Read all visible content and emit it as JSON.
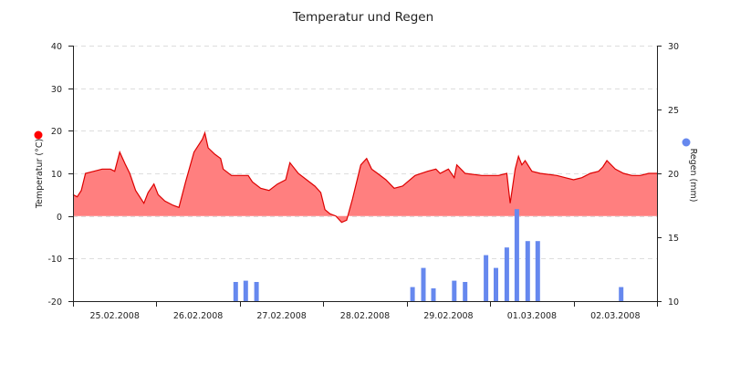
{
  "chart_data": {
    "type": "area+bar",
    "title": "Temperatur und Regen",
    "x_labels": [
      "25.02.2008",
      "26.02.2008",
      "27.02.2008",
      "28.02.2008",
      "29.02.2008",
      "01.03.2008",
      "02.03.2008"
    ],
    "x_range_days": [
      0,
      7
    ],
    "y_left": {
      "label": "Temperatur (°C)",
      "ylim": [
        -20,
        40
      ],
      "ticks": [
        -20,
        -10,
        0,
        10,
        20,
        30,
        40
      ]
    },
    "y_right": {
      "label": "Regen (mm)",
      "ylim": [
        10,
        30
      ],
      "ticks": [
        10,
        15,
        20,
        25,
        30
      ]
    },
    "grid": true,
    "series": [
      {
        "name": "Temperatur (°C)",
        "type": "area",
        "color": "#ff7f7f",
        "line_color": "#dd0000",
        "marker_color": "#ff0000",
        "axis": "left",
        "points": [
          [
            0.0,
            5.0
          ],
          [
            0.05,
            4.5
          ],
          [
            0.1,
            6.0
          ],
          [
            0.15,
            10.0
          ],
          [
            0.25,
            10.5
          ],
          [
            0.35,
            11.0
          ],
          [
            0.45,
            11.0
          ],
          [
            0.5,
            10.5
          ],
          [
            0.56,
            15.0
          ],
          [
            0.63,
            12.0
          ],
          [
            0.68,
            10.0
          ],
          [
            0.75,
            6.0
          ],
          [
            0.85,
            3.0
          ],
          [
            0.9,
            5.5
          ],
          [
            0.97,
            7.5
          ],
          [
            1.02,
            5.0
          ],
          [
            1.1,
            3.5
          ],
          [
            1.2,
            2.5
          ],
          [
            1.27,
            2.0
          ],
          [
            1.35,
            8.0
          ],
          [
            1.45,
            15.0
          ],
          [
            1.55,
            18.0
          ],
          [
            1.58,
            19.5
          ],
          [
            1.62,
            16.0
          ],
          [
            1.7,
            14.5
          ],
          [
            1.77,
            13.5
          ],
          [
            1.8,
            11.0
          ],
          [
            1.9,
            9.5
          ],
          [
            2.0,
            9.5
          ],
          [
            2.1,
            9.5
          ],
          [
            2.15,
            8.0
          ],
          [
            2.25,
            6.5
          ],
          [
            2.35,
            6.0
          ],
          [
            2.45,
            7.5
          ],
          [
            2.55,
            8.5
          ],
          [
            2.6,
            12.5
          ],
          [
            2.7,
            10.0
          ],
          [
            2.8,
            8.5
          ],
          [
            2.9,
            7.0
          ],
          [
            2.97,
            5.5
          ],
          [
            3.02,
            1.5
          ],
          [
            3.08,
            0.5
          ],
          [
            3.15,
            0.0
          ],
          [
            3.22,
            -1.5
          ],
          [
            3.28,
            -1.0
          ],
          [
            3.35,
            4.0
          ],
          [
            3.45,
            12.0
          ],
          [
            3.52,
            13.5
          ],
          [
            3.58,
            11.0
          ],
          [
            3.65,
            10.0
          ],
          [
            3.75,
            8.5
          ],
          [
            3.85,
            6.5
          ],
          [
            3.95,
            7.0
          ],
          [
            4.1,
            9.5
          ],
          [
            4.25,
            10.5
          ],
          [
            4.35,
            11.0
          ],
          [
            4.4,
            10.0
          ],
          [
            4.5,
            11.0
          ],
          [
            4.57,
            9.0
          ],
          [
            4.6,
            12.0
          ],
          [
            4.7,
            10.0
          ],
          [
            4.9,
            9.5
          ],
          [
            5.0,
            9.5
          ],
          [
            5.1,
            9.5
          ],
          [
            5.2,
            10.0
          ],
          [
            5.24,
            3.0
          ],
          [
            5.3,
            11.0
          ],
          [
            5.34,
            14.0
          ],
          [
            5.38,
            12.0
          ],
          [
            5.42,
            13.0
          ],
          [
            5.5,
            10.5
          ],
          [
            5.6,
            10.0
          ],
          [
            5.8,
            9.5
          ],
          [
            5.9,
            9.0
          ],
          [
            6.0,
            8.5
          ],
          [
            6.1,
            9.0
          ],
          [
            6.2,
            10.0
          ],
          [
            6.3,
            10.5
          ],
          [
            6.35,
            11.5
          ],
          [
            6.4,
            13.0
          ],
          [
            6.5,
            11.0
          ],
          [
            6.6,
            10.0
          ],
          [
            6.7,
            9.5
          ],
          [
            6.8,
            9.5
          ],
          [
            6.9,
            10.0
          ],
          [
            7.0,
            10.0
          ]
        ]
      },
      {
        "name": "Regen (mm)",
        "type": "bar",
        "color": "#6688ee",
        "marker_color": "#6688ee",
        "axis": "right",
        "points": [
          [
            1.95,
            1.5
          ],
          [
            2.07,
            1.6
          ],
          [
            2.2,
            1.5
          ],
          [
            4.07,
            1.1
          ],
          [
            4.2,
            2.6
          ],
          [
            4.32,
            1.0
          ],
          [
            4.57,
            1.6
          ],
          [
            4.7,
            1.5
          ],
          [
            4.95,
            3.6
          ],
          [
            5.07,
            2.6
          ],
          [
            5.2,
            4.2
          ],
          [
            5.32,
            7.2
          ],
          [
            5.45,
            4.7
          ],
          [
            5.57,
            4.7
          ],
          [
            6.57,
            1.1
          ]
        ]
      }
    ]
  }
}
